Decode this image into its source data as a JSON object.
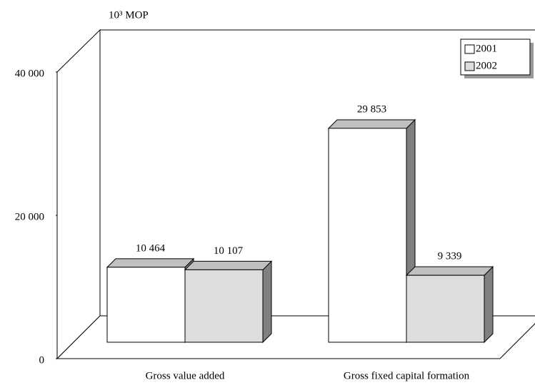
{
  "chart_data": {
    "type": "bar3d",
    "unit_label": "10³ MOP",
    "categories": [
      "Gross value added",
      "Gross fixed capital formation"
    ],
    "series": [
      {
        "name": "2001",
        "color": "#ffffff",
        "values": [
          10464,
          29853
        ],
        "value_labels": [
          "10 464",
          "29 853"
        ]
      },
      {
        "name": "2002",
        "color": "#dddddd",
        "values": [
          10107,
          9339
        ],
        "value_labels": [
          "10 107",
          "9 339"
        ]
      }
    ],
    "ylim": [
      0,
      40000
    ],
    "yticks": [
      0,
      {
        "value": 20000,
        "label": "20 000"
      },
      {
        "value": 40000,
        "label": "40 000"
      }
    ],
    "legend": "top-right"
  }
}
